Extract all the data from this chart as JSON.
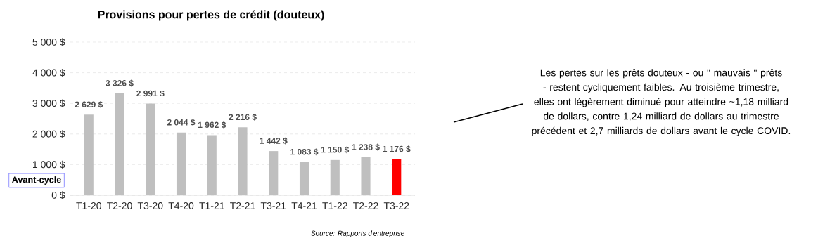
{
  "chart_data": {
    "type": "bar",
    "title": "Provisions pour pertes de crédit (douteux)",
    "categories": [
      "T1-20",
      "T2-20",
      "T3-20",
      "T4-20",
      "T1-21",
      "T2-21",
      "T3-21",
      "T4-21",
      "T1-22",
      "T2-22",
      "T3-22"
    ],
    "values": [
      2629,
      3326,
      2991,
      2044,
      1962,
      2216,
      1442,
      1083,
      1150,
      1238,
      1176
    ],
    "value_labels": [
      "2 629 $",
      "3 326 $",
      "2 991 $",
      "2 044 $",
      "1 962 $",
      "2 216 $",
      "1 442 $",
      "1 083 $",
      "1 150 $",
      "1 238 $",
      "1 176 $"
    ],
    "colors": [
      "#bfbfbf",
      "#bfbfbf",
      "#bfbfbf",
      "#bfbfbf",
      "#bfbfbf",
      "#bfbfbf",
      "#bfbfbf",
      "#bfbfbf",
      "#bfbfbf",
      "#bfbfbf",
      "#ff0000"
    ],
    "ylim": [
      0,
      5000
    ],
    "yticks": [
      {
        "value": 0,
        "label": "0 $"
      },
      {
        "value": 1000,
        "label": "1 000 $"
      },
      {
        "value": 2000,
        "label": "2 000 $"
      },
      {
        "value": 3000,
        "label": "3 000 $"
      },
      {
        "value": 4000,
        "label": "4 000 $"
      },
      {
        "value": 5000,
        "label": "5 000 $"
      }
    ],
    "grid": "y",
    "annotations": [
      "Avant-cycle",
      "Les pertes sur les prêts douteux - ou \" mauvais \" prêts - restent cycliquement faibles. Au troisième trimestre, elles ont légèrement diminué pour atteindre ~1,18 milliard de dollars, contre 1,24 milliard de dollars au trimestre précédent et 2,7 milliards de dollars avant le cycle COVID.",
      "Source: Rapports d'entreprise"
    ]
  }
}
